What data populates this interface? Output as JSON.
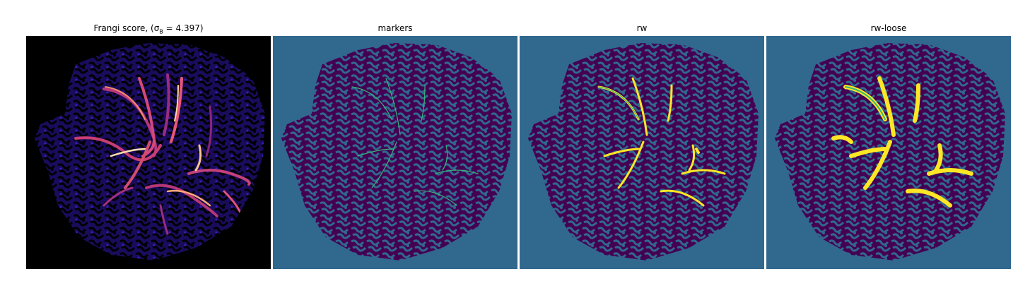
{
  "panels": [
    {
      "title": "Frangi score, (σ",
      "sigma_sub": "B",
      "title_suffix": " = 4.397)",
      "colormap": "magma"
    },
    {
      "title": "markers",
      "colormap": "viridis"
    },
    {
      "title": "rw",
      "colormap": "viridis"
    },
    {
      "title": "rw-loose",
      "colormap": "viridis"
    }
  ],
  "colors": {
    "background_panel1": "#000000",
    "score_low": "#2c1f9c",
    "score_high": "#fcfdbf",
    "label_background": "#31688e",
    "label_tissue": "#440154",
    "label_vessel": "#35b779",
    "label_vessel_loose": "#fde725"
  }
}
